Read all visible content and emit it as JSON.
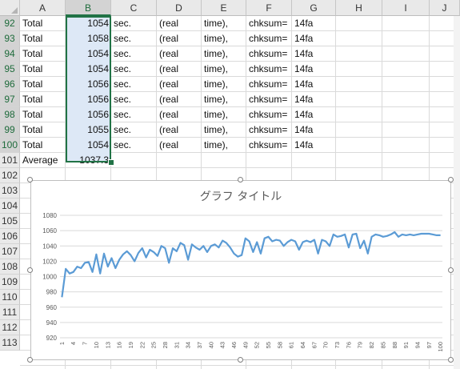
{
  "columns": [
    "A",
    "B",
    "C",
    "D",
    "E",
    "F",
    "G",
    "H",
    "I",
    "J"
  ],
  "rows": [
    {
      "num": "92",
      "a": "Total",
      "b": "1054",
      "c": "sec.",
      "d": "(real",
      "e": "time),",
      "f": "chksum=",
      "g": "14fa"
    },
    {
      "num": "93",
      "a": "Total",
      "b": "1058",
      "c": "sec.",
      "d": "(real",
      "e": "time),",
      "f": "chksum=",
      "g": "14fa"
    },
    {
      "num": "94",
      "a": "Total",
      "b": "1054",
      "c": "sec.",
      "d": "(real",
      "e": "time),",
      "f": "chksum=",
      "g": "14fa"
    },
    {
      "num": "95",
      "a": "Total",
      "b": "1054",
      "c": "sec.",
      "d": "(real",
      "e": "time),",
      "f": "chksum=",
      "g": "14fa"
    },
    {
      "num": "96",
      "a": "Total",
      "b": "1056",
      "c": "sec.",
      "d": "(real",
      "e": "time),",
      "f": "chksum=",
      "g": "14fa"
    },
    {
      "num": "97",
      "a": "Total",
      "b": "1056",
      "c": "sec.",
      "d": "(real",
      "e": "time),",
      "f": "chksum=",
      "g": "14fa"
    },
    {
      "num": "98",
      "a": "Total",
      "b": "1056",
      "c": "sec.",
      "d": "(real",
      "e": "time),",
      "f": "chksum=",
      "g": "14fa"
    },
    {
      "num": "99",
      "a": "Total",
      "b": "1055",
      "c": "sec.",
      "d": "(real",
      "e": "time),",
      "f": "chksum=",
      "g": "14fa"
    },
    {
      "num": "100",
      "a": "Total",
      "b": "1054",
      "c": "sec.",
      "d": "(real",
      "e": "time),",
      "f": "chksum=",
      "g": "14fa"
    },
    {
      "num": "101",
      "a": "Average",
      "b": "1037.3",
      "c": "",
      "d": "",
      "e": "",
      "f": "",
      "g": ""
    },
    {
      "num": "102"
    },
    {
      "num": "103"
    },
    {
      "num": "104"
    },
    {
      "num": "105"
    },
    {
      "num": "106"
    },
    {
      "num": "107"
    },
    {
      "num": "108"
    },
    {
      "num": "109"
    },
    {
      "num": "110"
    },
    {
      "num": "111"
    },
    {
      "num": "112"
    },
    {
      "num": "113"
    }
  ],
  "colors": {
    "selection_border": "#217346",
    "selection_fill": "#dde8f6",
    "line": "#5b9bd5",
    "grid": "#d9d9d9"
  },
  "chart_data": {
    "type": "line",
    "title": "グラフ タイトル",
    "ylim": [
      920,
      1080
    ],
    "yticks": [
      920,
      940,
      960,
      980,
      1000,
      1020,
      1040,
      1060,
      1080
    ],
    "xtick_labels": [
      "1",
      "4",
      "7",
      "10",
      "13",
      "16",
      "19",
      "22",
      "25",
      "28",
      "31",
      "34",
      "37",
      "40",
      "43",
      "46",
      "49",
      "52",
      "55",
      "58",
      "61",
      "64",
      "67",
      "70",
      "73",
      "76",
      "79",
      "82",
      "85",
      "88",
      "91",
      "94",
      "97",
      "100"
    ],
    "grid": true,
    "legend": "none",
    "series": [
      {
        "values": [
          973,
          1010,
          1004,
          1006,
          1013,
          1011,
          1018,
          1019,
          1006,
          1029,
          1004,
          1030,
          1013,
          1024,
          1011,
          1022,
          1029,
          1033,
          1028,
          1020,
          1031,
          1037,
          1025,
          1035,
          1032,
          1027,
          1040,
          1037,
          1018,
          1037,
          1033,
          1044,
          1041,
          1022,
          1042,
          1038,
          1035,
          1040,
          1032,
          1040,
          1042,
          1038,
          1047,
          1044,
          1038,
          1030,
          1026,
          1028,
          1050,
          1046,
          1032,
          1045,
          1030,
          1050,
          1052,
          1046,
          1048,
          1047,
          1040,
          1045,
          1048,
          1046,
          1035,
          1045,
          1047,
          1045,
          1048,
          1030,
          1048,
          1046,
          1040,
          1055,
          1052,
          1053,
          1055,
          1038,
          1055,
          1056,
          1037,
          1047,
          1030,
          1052,
          1055,
          1054,
          1052,
          1053,
          1055,
          1058,
          1052,
          1055,
          1054,
          1055,
          1054,
          1055,
          1056,
          1056,
          1056,
          1055,
          1054,
          1054
        ]
      }
    ]
  }
}
